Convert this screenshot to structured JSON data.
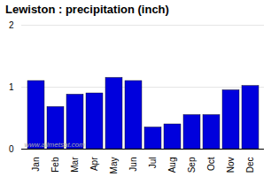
{
  "chart_data": {
    "type": "bar",
    "title": "Lewiston : precipitation (inch)",
    "categories": [
      "Jan",
      "Feb",
      "Mar",
      "Apr",
      "May",
      "Jun",
      "Jul",
      "Aug",
      "Sep",
      "Oct",
      "Nov",
      "Dec"
    ],
    "values": [
      1.1,
      0.68,
      0.88,
      0.9,
      1.15,
      1.1,
      0.35,
      0.4,
      0.55,
      0.55,
      0.95,
      1.02
    ],
    "color": "#0000dd",
    "ylim": [
      0,
      2
    ],
    "yticks": [
      0,
      1,
      2
    ],
    "grid": true,
    "annotations": [
      "www.allmetsat.com"
    ]
  }
}
